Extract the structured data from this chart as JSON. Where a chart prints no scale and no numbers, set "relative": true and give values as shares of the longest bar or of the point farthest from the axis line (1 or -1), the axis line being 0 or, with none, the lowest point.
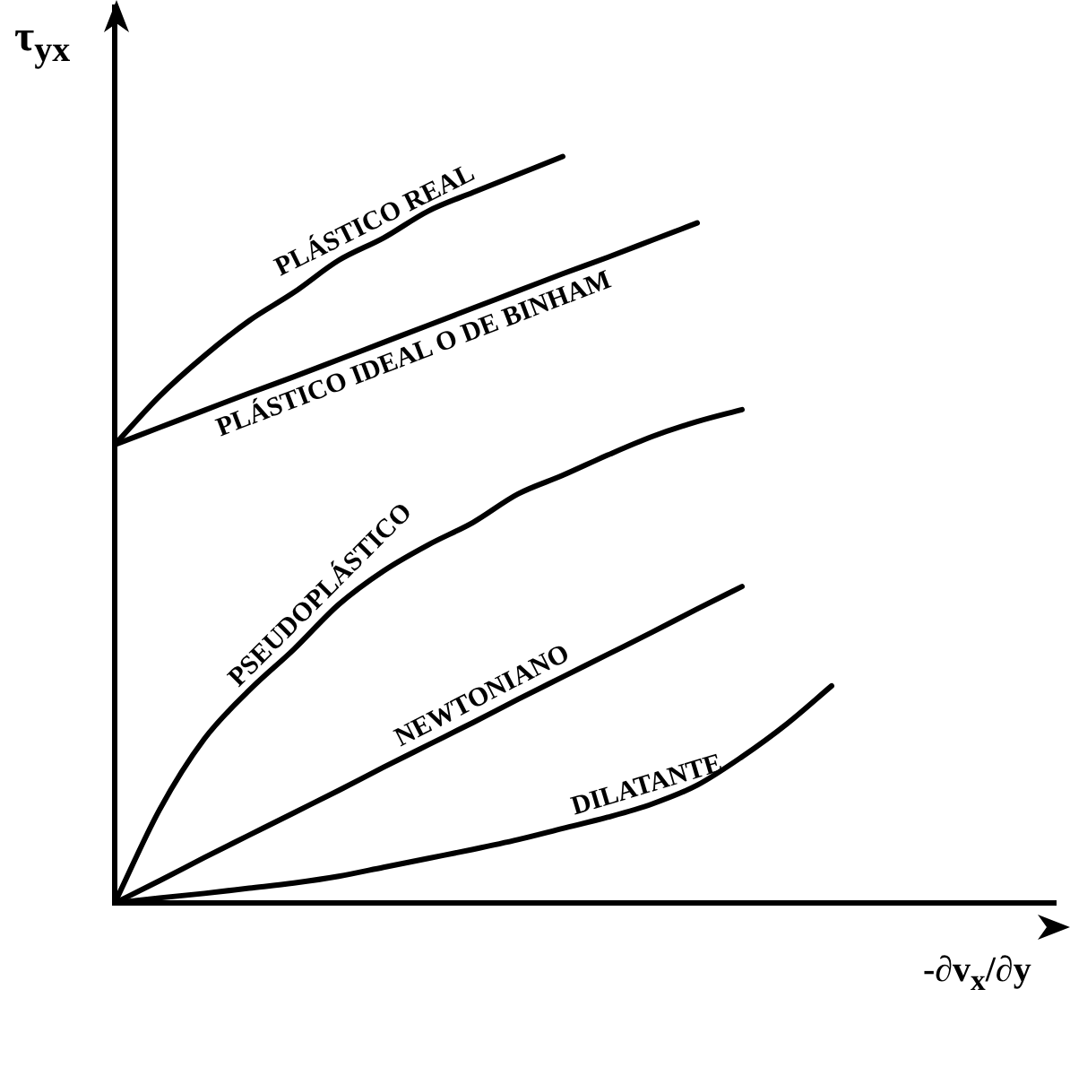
{
  "chart_data": {
    "type": "line",
    "relative": true,
    "ylabel": "τ$_{yx}$",
    "xlabel": "-∂v$_{x}$/∂y",
    "marker": "none",
    "grid": false,
    "legend": false,
    "categories": [
      null,
      null,
      null,
      null,
      null,
      null,
      null,
      null,
      null,
      null,
      null,
      null,
      null,
      null,
      null,
      null,
      null,
      null,
      null,
      null,
      null,
      null
    ],
    "series": [
      {
        "name": "PLÁSTICO REAL",
        "color": "#000000",
        "values": [
          0.614,
          0.679,
          0.733,
          0.78,
          0.818,
          0.861,
          0.891,
          0.927,
          0.952,
          0.976,
          1,
          null,
          null,
          null,
          null,
          null,
          null,
          null,
          null,
          null,
          null,
          null
        ]
      },
      {
        "name": "PLÁSTICO IDEAL O DE BINHAM",
        "color": "#000000",
        "values": [
          0.614,
          0.637,
          0.66,
          0.683,
          0.705,
          0.728,
          0.751,
          0.774,
          0.797,
          0.82,
          0.843,
          0.865,
          0.888,
          0.911,
          null,
          null,
          null,
          null,
          null,
          null,
          null,
          null
        ]
      },
      {
        "name": "PSEUDOPLÁSTICO",
        "color": "#000000",
        "values": [
          0,
          0.125,
          0.22,
          0.285,
          0.34,
          0.4,
          0.445,
          0.48,
          0.51,
          0.548,
          0.573,
          0.6,
          0.625,
          0.645,
          0.661,
          null,
          null,
          null,
          null,
          null,
          null,
          null
        ]
      },
      {
        "name": "NEWTONIANO",
        "color": "#000000",
        "values": [
          0,
          0.03,
          0.061,
          0.091,
          0.121,
          0.151,
          0.182,
          0.212,
          0.242,
          0.273,
          0.303,
          0.333,
          0.363,
          0.394,
          0.424,
          null,
          null,
          null,
          null,
          null,
          null,
          null
        ]
      },
      {
        "name": "DILATANTE",
        "color": "#000000",
        "values": [
          0,
          0.007,
          0.013,
          0.02,
          0.027,
          0.036,
          0.048,
          0.06,
          0.072,
          0.085,
          0.1,
          0.115,
          0.133,
          0.158,
          0.196,
          0.24,
          0.291,
          null,
          null,
          null,
          null,
          null
        ]
      }
    ]
  }
}
